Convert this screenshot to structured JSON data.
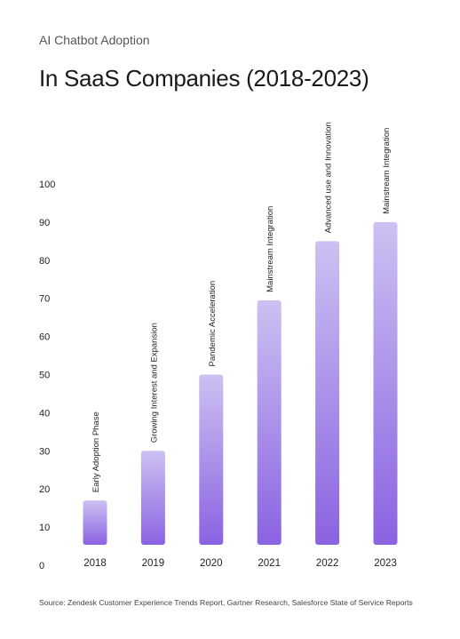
{
  "header": {
    "subtitle": "AI Chatbot Adoption",
    "title": "In SaaS Companies (2018-2023)"
  },
  "footer": {
    "source": "Source: Zendesk Customer Experience Trends Report, Gartner Research, Salesforce State of Service Reports"
  },
  "colors": {
    "bar_top": "#cdc0f2",
    "bar_bottom": "#8a63e1",
    "axis_text": "#222222"
  },
  "chart_data": {
    "type": "bar",
    "categories": [
      "2018",
      "2019",
      "2020",
      "2021",
      "2022",
      "2023"
    ],
    "values": [
      17,
      30,
      50,
      69.5,
      85,
      90
    ],
    "annotations": [
      "Early Adoption Phase",
      "Growing Interest and Expansion",
      "Pandemic Acceleration",
      "Mainstream Integration",
      "Advanced use and Innovation",
      "Mainstream Integration"
    ],
    "title": "In SaaS Companies (2018-2023)",
    "xlabel": "",
    "ylabel": "",
    "ylim": [
      0,
      100
    ],
    "yticks": [
      0,
      10,
      20,
      30,
      40,
      50,
      60,
      70,
      80,
      90,
      100
    ],
    "grid": false
  }
}
